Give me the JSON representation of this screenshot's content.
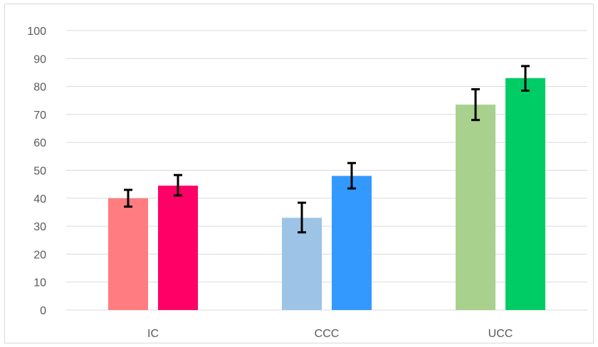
{
  "chart_data": {
    "type": "bar",
    "title": "",
    "xlabel": "",
    "ylabel": "",
    "ylim": [
      0,
      100
    ],
    "yticks": [
      0,
      10,
      20,
      30,
      40,
      50,
      60,
      70,
      80,
      90,
      100
    ],
    "grid": true,
    "legend": "none",
    "categories": [
      "IC",
      "CCC",
      "UCC"
    ],
    "series": [
      {
        "values": [
          40,
          33,
          73.5
        ],
        "error_low": [
          37,
          27.8,
          68
        ],
        "error_high": [
          43,
          38.4,
          79
        ],
        "colors": [
          "#ff7c80",
          "#9dc3e6",
          "#a9d18e"
        ]
      },
      {
        "values": [
          44.5,
          48,
          83
        ],
        "error_low": [
          41,
          43.5,
          78.5
        ],
        "error_high": [
          48.3,
          52.6,
          87.3
        ],
        "colors": [
          "#ff0066",
          "#3399ff",
          "#00cc66"
        ]
      }
    ]
  }
}
